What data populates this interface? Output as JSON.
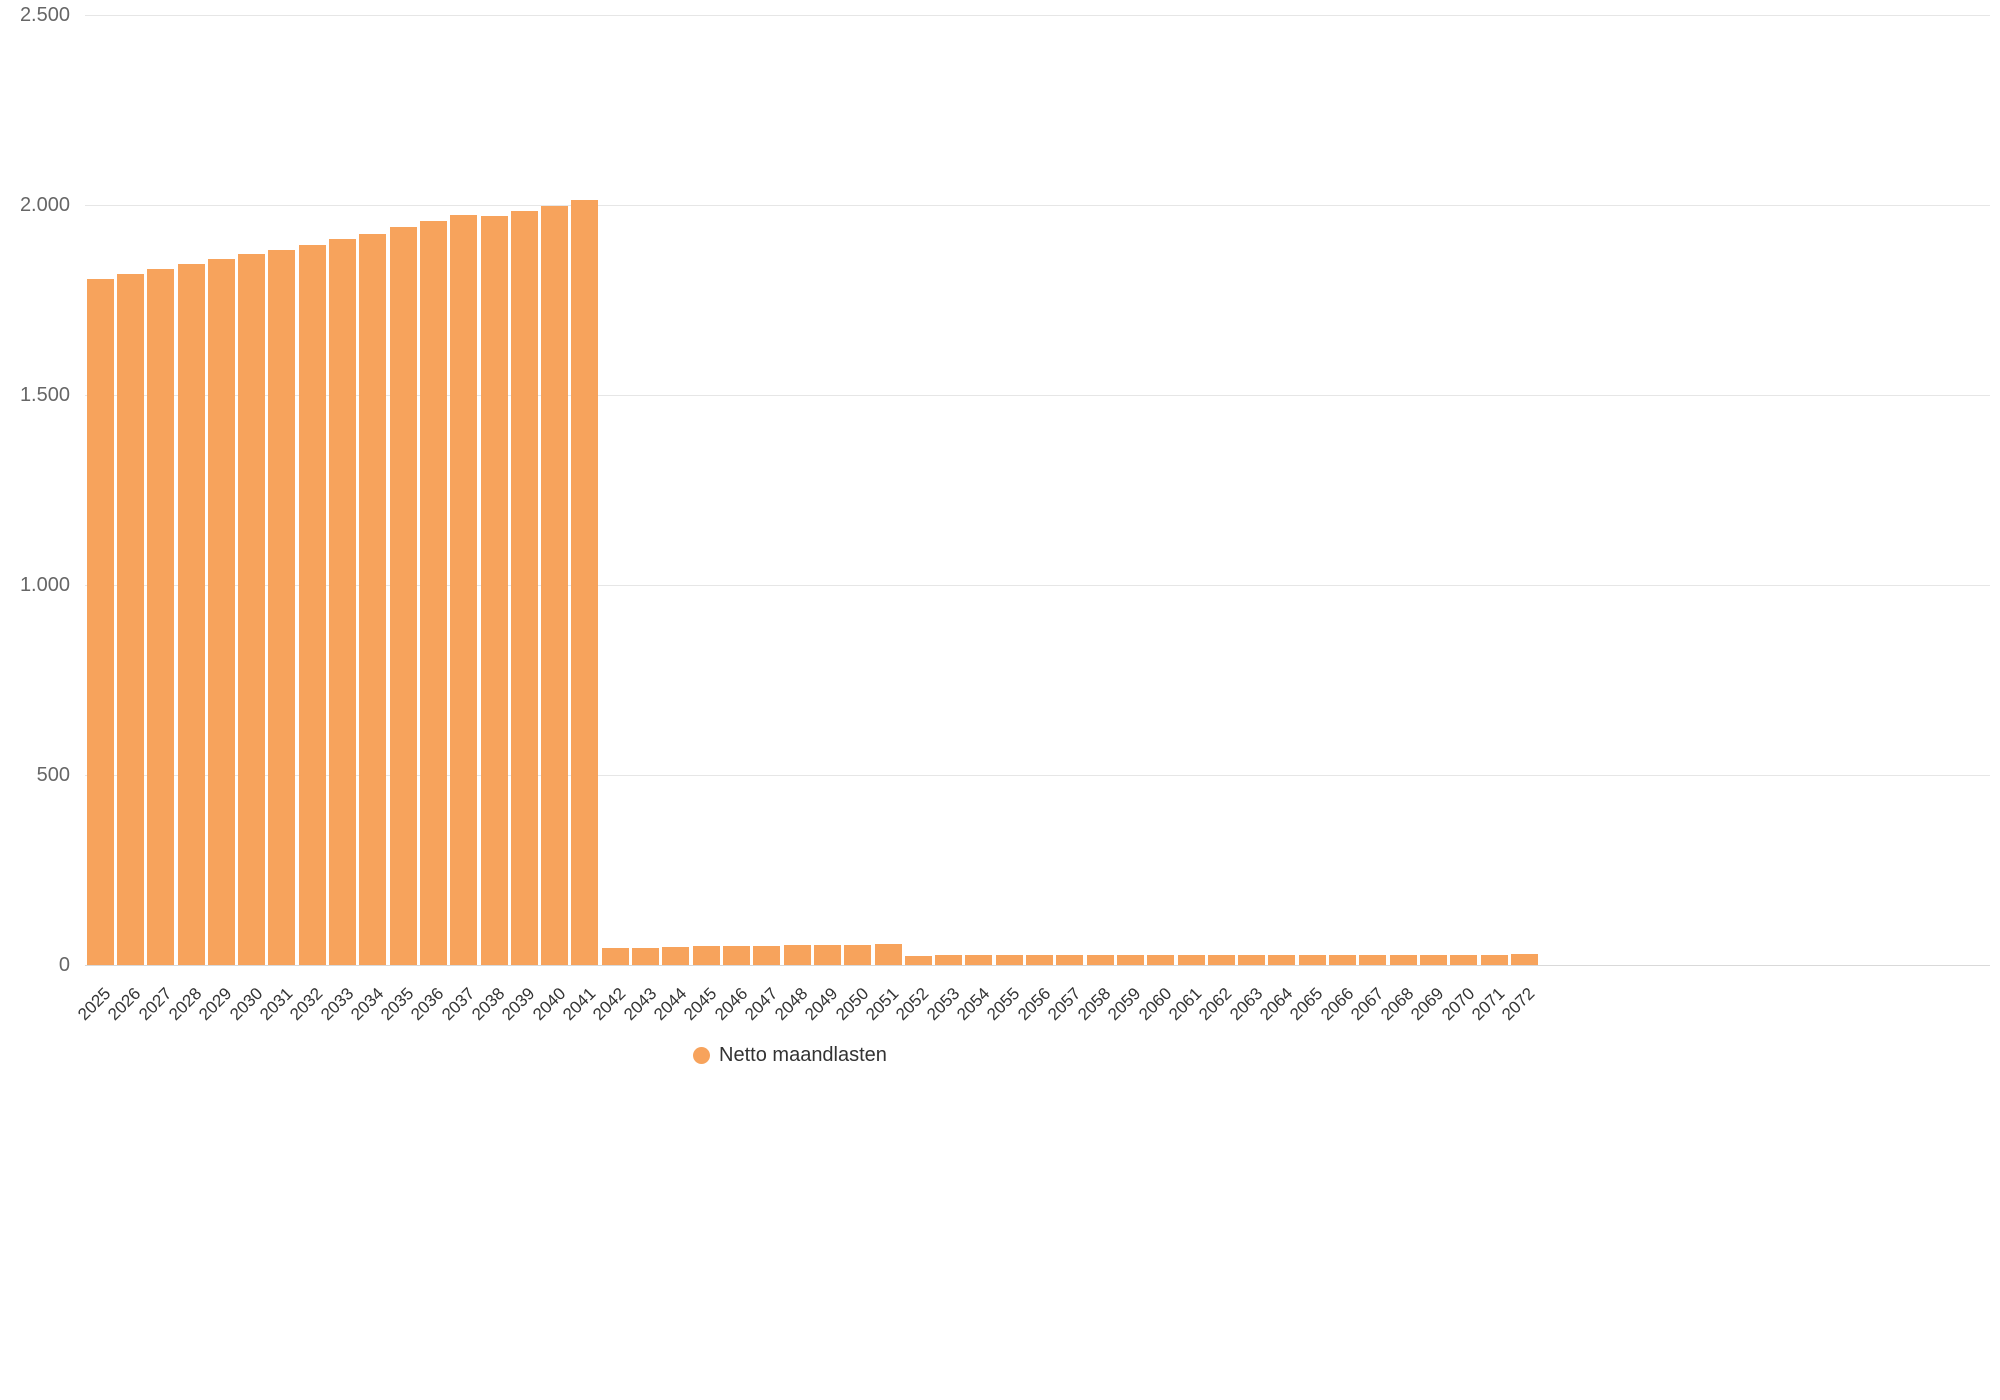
{
  "chart_data": {
    "type": "bar",
    "title": "",
    "series_name": "Netto maandlasten",
    "bar_color": "#f7a35c",
    "grid": true,
    "legend_position": "bottom",
    "ylim": [
      0,
      2500
    ],
    "yticks": [
      0,
      500,
      1000,
      1500,
      2000,
      2500
    ],
    "ytick_labels": [
      "0",
      "500",
      "1.000",
      "1.500",
      "2.000",
      "2.500"
    ],
    "categories": [
      "2025",
      "2026",
      "2027",
      "2028",
      "2029",
      "2030",
      "2031",
      "2032",
      "2033",
      "2034",
      "2035",
      "2036",
      "2037",
      "2038",
      "2039",
      "2040",
      "2041",
      "2042",
      "2043",
      "2044",
      "2045",
      "2046",
      "2047",
      "2048",
      "2049",
      "2050",
      "2051",
      "2052",
      "2053",
      "2054",
      "2055",
      "2056",
      "2057",
      "2058",
      "2059",
      "2060",
      "2061",
      "2062",
      "2063",
      "2064",
      "2065",
      "2066",
      "2067",
      "2068",
      "2069",
      "2070",
      "2071",
      "2072"
    ],
    "values": [
      1805,
      1818,
      1831,
      1844,
      1857,
      1870,
      1883,
      1896,
      1910,
      1925,
      1942,
      1957,
      1974,
      1971,
      1984,
      1997,
      2012,
      44,
      46,
      47,
      51,
      49,
      50,
      52,
      52,
      54,
      55,
      25,
      26,
      26,
      26,
      27,
      27,
      26,
      26,
      26,
      26,
      26,
      26,
      27,
      27,
      27,
      27,
      26,
      26,
      27,
      27,
      28
    ]
  },
  "legend": {
    "label": "Netto maandlasten",
    "marker_color": "#f7a35c"
  }
}
